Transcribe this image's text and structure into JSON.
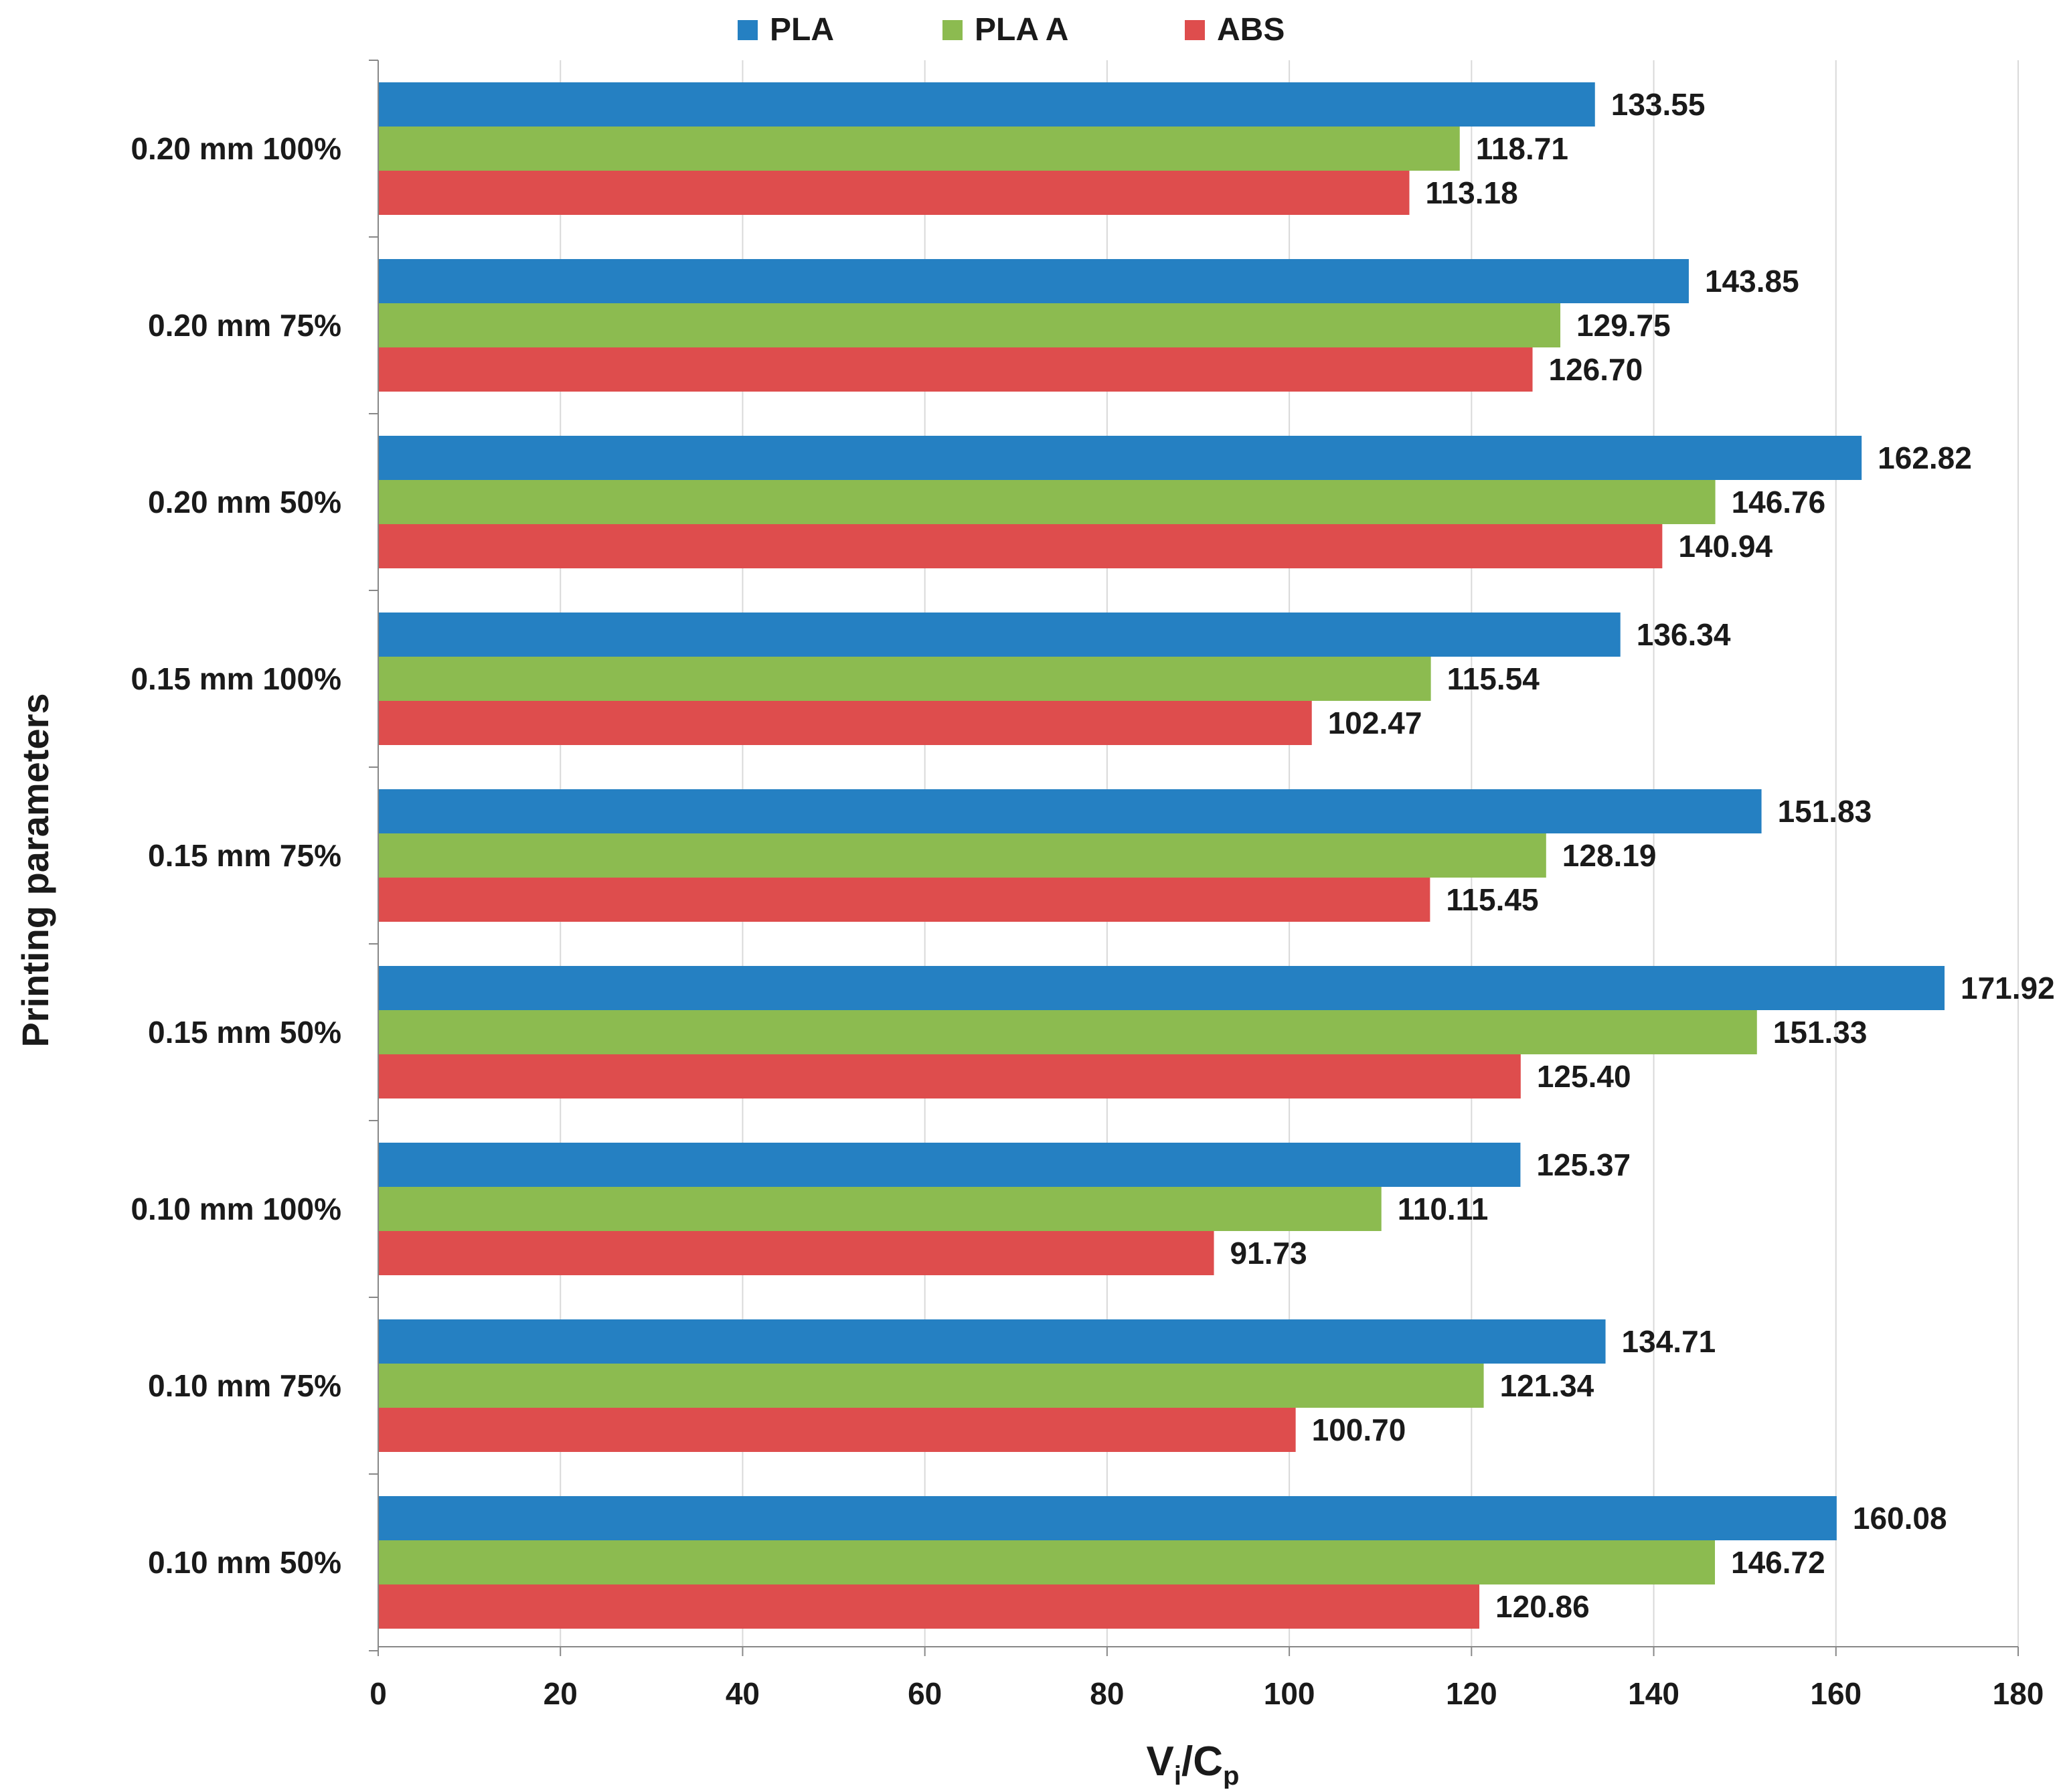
{
  "chart_data": {
    "type": "bar",
    "orientation": "horizontal",
    "title": "",
    "xlabel_main": "V",
    "xlabel_sub1": "i",
    "xlabel_sep": "/C",
    "xlabel_sub2": "p",
    "ylabel": "Printing parameters",
    "xlim": [
      0,
      180
    ],
    "xticks": [
      0,
      20,
      40,
      60,
      80,
      100,
      120,
      140,
      160,
      180
    ],
    "grid": true,
    "legend_position": "top-center",
    "categories": [
      "0.20 mm  100%",
      "0.20 mm 75%",
      "0.20 mm 50%",
      "0.15 mm 100%",
      "0.15 mm 75%",
      "0.15 mm  50%",
      "0.10 mm 100%",
      "0.10 mm 75%",
      "0.10 mm  50%"
    ],
    "series": [
      {
        "name": "PLA",
        "color": "#2580C2",
        "values": [
          133.55,
          143.85,
          162.82,
          136.34,
          151.83,
          171.92,
          125.37,
          134.71,
          160.08
        ],
        "labels": [
          "133.55",
          "143.85",
          "162.82",
          "136.34",
          "151.83",
          "171.92",
          "125.37",
          "134.71",
          "160.08"
        ]
      },
      {
        "name": "PLA A",
        "color": "#8CBB50",
        "values": [
          118.71,
          129.75,
          146.76,
          115.54,
          128.19,
          151.33,
          110.11,
          121.34,
          146.72
        ],
        "labels": [
          "118.71",
          "129.75",
          "146.76",
          "115.54",
          "128.19",
          "151.33",
          "110.11",
          "121.34",
          "146.72"
        ]
      },
      {
        "name": "ABS",
        "color": "#DE4D4D",
        "values": [
          113.18,
          126.7,
          140.94,
          102.47,
          115.45,
          125.4,
          91.73,
          100.7,
          120.86
        ],
        "labels": [
          "113.18",
          "126.70",
          "140.94",
          "102.47",
          "115.45",
          "125.40",
          "91.73",
          "100.70",
          "120.86"
        ]
      }
    ]
  }
}
